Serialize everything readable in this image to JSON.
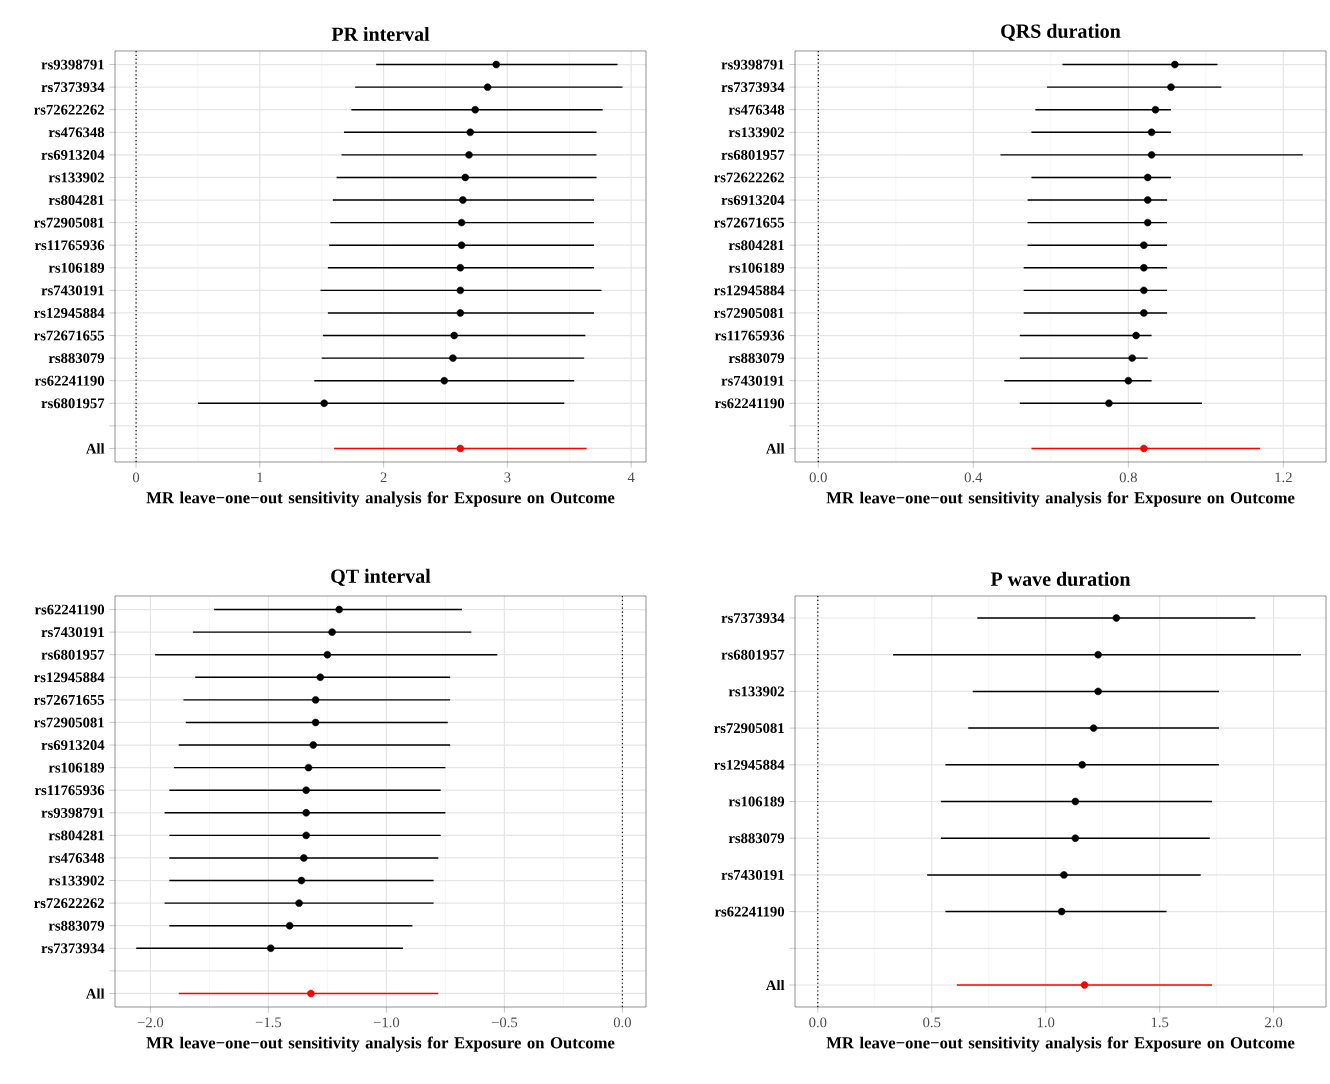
{
  "chart_data": [
    {
      "type": "scatter",
      "orientation": "horizontal",
      "title": "PR interval",
      "xlabel": "MR leave−one−out sensitivity analysis for Exposure on Outcome",
      "categories": [
        "rs9398791",
        "rs7373934",
        "rs72622262",
        "rs476348",
        "rs6913204",
        "rs133902",
        "rs804281",
        "rs72905081",
        "rs11765936",
        "rs106189",
        "rs7430191",
        "rs12945884",
        "rs72671655",
        "rs883079",
        "rs62241190",
        "rs6801957",
        null,
        "All"
      ],
      "values": [
        2.91,
        2.84,
        2.74,
        2.7,
        2.69,
        2.66,
        2.64,
        2.63,
        2.63,
        2.62,
        2.62,
        2.62,
        2.57,
        2.56,
        2.49,
        1.52,
        null,
        2.62
      ],
      "errors": [
        [
          1.94,
          3.89
        ],
        [
          1.77,
          3.93
        ],
        [
          1.74,
          3.77
        ],
        [
          1.68,
          3.72
        ],
        [
          1.66,
          3.72
        ],
        [
          1.62,
          3.72
        ],
        [
          1.59,
          3.7
        ],
        [
          1.57,
          3.7
        ],
        [
          1.56,
          3.7
        ],
        [
          1.55,
          3.7
        ],
        [
          1.49,
          3.76
        ],
        [
          1.55,
          3.7
        ],
        [
          1.51,
          3.63
        ],
        [
          1.5,
          3.62
        ],
        [
          1.44,
          3.54
        ],
        [
          0.5,
          3.46
        ],
        null,
        [
          1.6,
          3.64
        ]
      ],
      "colors": [
        "#000000",
        "#000000",
        "#000000",
        "#000000",
        "#000000",
        "#000000",
        "#000000",
        "#000000",
        "#000000",
        "#000000",
        "#000000",
        "#000000",
        "#000000",
        "#000000",
        "#000000",
        "#000000",
        null,
        "#ff0000"
      ],
      "xlim": [
        -0.17,
        4.12
      ],
      "xticks": [
        0,
        1,
        2,
        3,
        4
      ],
      "grid": true,
      "marker": "circle",
      "ref_lines": [
        {
          "axis": "x",
          "value": 0,
          "line_style": "dotted"
        }
      ]
    },
    {
      "type": "scatter",
      "orientation": "horizontal",
      "title": "QRS duration",
      "xlabel": "MR leave−one−out sensitivity analysis for Exposure on Outcome",
      "categories": [
        "rs9398791",
        "rs7373934",
        "rs476348",
        "rs133902",
        "rs6801957",
        "rs72622262",
        "rs6913204",
        "rs72671655",
        "rs804281",
        "rs106189",
        "rs12945884",
        "rs72905081",
        "rs11765936",
        "rs883079",
        "rs7430191",
        "rs62241190",
        null,
        "All"
      ],
      "values": [
        0.92,
        0.91,
        0.87,
        0.86,
        0.86,
        0.85,
        0.85,
        0.85,
        0.84,
        0.84,
        0.84,
        0.84,
        0.82,
        0.81,
        0.8,
        0.75,
        null,
        0.84
      ],
      "errors": [
        [
          0.63,
          1.03
        ],
        [
          0.59,
          1.04
        ],
        [
          0.56,
          0.91
        ],
        [
          0.55,
          0.91
        ],
        [
          0.47,
          1.25
        ],
        [
          0.55,
          0.91
        ],
        [
          0.54,
          0.9
        ],
        [
          0.54,
          0.9
        ],
        [
          0.54,
          0.9
        ],
        [
          0.53,
          0.9
        ],
        [
          0.53,
          0.9
        ],
        [
          0.53,
          0.9
        ],
        [
          0.52,
          0.86
        ],
        [
          0.52,
          0.85
        ],
        [
          0.48,
          0.86
        ],
        [
          0.52,
          0.99
        ],
        null,
        [
          0.55,
          1.14
        ]
      ],
      "colors": [
        "#000000",
        "#000000",
        "#000000",
        "#000000",
        "#000000",
        "#000000",
        "#000000",
        "#000000",
        "#000000",
        "#000000",
        "#000000",
        "#000000",
        "#000000",
        "#000000",
        "#000000",
        "#000000",
        null,
        "#ff0000"
      ],
      "xlim": [
        -0.06,
        1.31
      ],
      "xticks": [
        {
          "value": 0,
          "label": "0.0"
        },
        0.4,
        0.8,
        1.2
      ],
      "grid": true,
      "marker": "circle",
      "ref_lines": [
        {
          "axis": "x",
          "value": 0,
          "line_style": "dotted"
        }
      ]
    },
    {
      "type": "scatter",
      "orientation": "horizontal",
      "title": "QT interval",
      "xlabel": "MR leave−one−out sensitivity analysis for Exposure on Outcome",
      "categories": [
        "rs62241190",
        "rs7430191",
        "rs6801957",
        "rs12945884",
        "rs72671655",
        "rs72905081",
        "rs6913204",
        "rs106189",
        "rs11765936",
        "rs9398791",
        "rs804281",
        "rs476348",
        "rs133902",
        "rs72622262",
        "rs883079",
        "rs7373934",
        null,
        "All"
      ],
      "values": [
        -1.2,
        -1.23,
        -1.25,
        -1.28,
        -1.3,
        -1.3,
        -1.31,
        -1.33,
        -1.34,
        -1.34,
        -1.34,
        -1.35,
        -1.36,
        -1.37,
        -1.41,
        -1.49,
        null,
        -1.32
      ],
      "errors": [
        [
          -1.73,
          -0.68
        ],
        [
          -1.82,
          -0.64
        ],
        [
          -1.98,
          -0.53
        ],
        [
          -1.81,
          -0.73
        ],
        [
          -1.86,
          -0.73
        ],
        [
          -1.85,
          -0.74
        ],
        [
          -1.88,
          -0.73
        ],
        [
          -1.9,
          -0.75
        ],
        [
          -1.92,
          -0.77
        ],
        [
          -1.94,
          -0.75
        ],
        [
          -1.92,
          -0.77
        ],
        [
          -1.92,
          -0.78
        ],
        [
          -1.92,
          -0.8
        ],
        [
          -1.94,
          -0.8
        ],
        [
          -1.92,
          -0.89
        ],
        [
          -2.06,
          -0.93
        ],
        null,
        [
          -1.88,
          -0.78
        ]
      ],
      "colors": [
        "#000000",
        "#000000",
        "#000000",
        "#000000",
        "#000000",
        "#000000",
        "#000000",
        "#000000",
        "#000000",
        "#000000",
        "#000000",
        "#000000",
        "#000000",
        "#000000",
        "#000000",
        "#000000",
        null,
        "#ff0000"
      ],
      "xlim": [
        -2.15,
        0.1
      ],
      "xticks": [
        {
          "value": -2,
          "label": "−2.0"
        },
        {
          "value": -1.5,
          "label": "−1.5"
        },
        {
          "value": -1,
          "label": "−1.0"
        },
        {
          "value": -0.5,
          "label": "−0.5"
        },
        {
          "value": 0,
          "label": "0.0"
        }
      ],
      "grid": true,
      "marker": "circle",
      "ref_lines": [
        {
          "axis": "x",
          "value": 0,
          "line_style": "dotted"
        }
      ]
    },
    {
      "type": "scatter",
      "orientation": "horizontal",
      "title": "P wave duration",
      "xlabel": "MR leave−one−out sensitivity analysis for Exposure on Outcome",
      "categories": [
        "rs7373934",
        "rs6801957",
        "rs133902",
        "rs72905081",
        "rs12945884",
        "rs106189",
        "rs883079",
        "rs7430191",
        "rs62241190",
        null,
        "All"
      ],
      "values": [
        1.31,
        1.23,
        1.23,
        1.21,
        1.16,
        1.13,
        1.13,
        1.08,
        1.07,
        null,
        1.17
      ],
      "errors": [
        [
          0.7,
          1.92
        ],
        [
          0.33,
          2.12
        ],
        [
          0.68,
          1.76
        ],
        [
          0.66,
          1.76
        ],
        [
          0.56,
          1.76
        ],
        [
          0.54,
          1.73
        ],
        [
          0.54,
          1.72
        ],
        [
          0.48,
          1.68
        ],
        [
          0.56,
          1.53
        ],
        null,
        [
          0.61,
          1.73
        ]
      ],
      "colors": [
        "#000000",
        "#000000",
        "#000000",
        "#000000",
        "#000000",
        "#000000",
        "#000000",
        "#000000",
        "#000000",
        null,
        "#ff0000"
      ],
      "xlim": [
        -0.1,
        2.23
      ],
      "xticks": [
        {
          "value": 0,
          "label": "0.0"
        },
        0.5,
        {
          "value": 1,
          "label": "1.0"
        },
        1.5,
        {
          "value": 2,
          "label": "2.0"
        }
      ],
      "grid": true,
      "marker": "circle",
      "ref_lines": [
        {
          "axis": "x",
          "value": 0,
          "line_style": "dotted"
        }
      ]
    }
  ]
}
